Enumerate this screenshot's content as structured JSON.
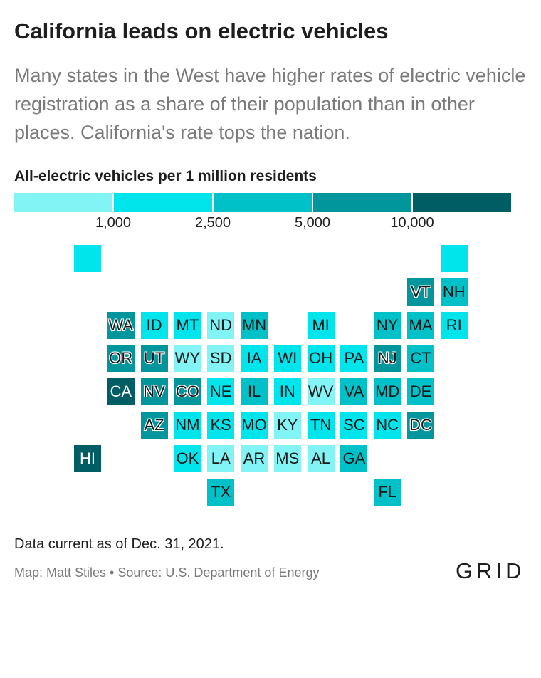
{
  "header": {
    "title": "California leads on electric vehicles",
    "subtitle": "Many states in the West have higher rates of electric vehicle registration as a share of their population than in other places. California's rate tops the nation."
  },
  "legend": {
    "title": "All-electric vehicles per 1 million residents",
    "ticks": [
      "1,000",
      "2,500",
      "5,000",
      "10,000"
    ],
    "colors": [
      "#82f4f6",
      "#00e4ec",
      "#00c1c8",
      "#00969c",
      "#005d63"
    ]
  },
  "map": {
    "tiles": [
      {
        "state": "",
        "col": 0,
        "row": 0,
        "bin": 1
      },
      {
        "state": "",
        "col": 11,
        "row": 0,
        "bin": 1
      },
      {
        "state": "VT",
        "col": 10,
        "row": 1,
        "bin": 3
      },
      {
        "state": "NH",
        "col": 11,
        "row": 1,
        "bin": 2
      },
      {
        "state": "WA",
        "col": 1,
        "row": 2,
        "bin": 3
      },
      {
        "state": "ID",
        "col": 2,
        "row": 2,
        "bin": 1
      },
      {
        "state": "MT",
        "col": 3,
        "row": 2,
        "bin": 1
      },
      {
        "state": "ND",
        "col": 4,
        "row": 2,
        "bin": 0
      },
      {
        "state": "MN",
        "col": 5,
        "row": 2,
        "bin": 2
      },
      {
        "state": "MI",
        "col": 7,
        "row": 2,
        "bin": 1
      },
      {
        "state": "NY",
        "col": 9,
        "row": 2,
        "bin": 2
      },
      {
        "state": "MA",
        "col": 10,
        "row": 2,
        "bin": 2
      },
      {
        "state": "RI",
        "col": 11,
        "row": 2,
        "bin": 1
      },
      {
        "state": "OR",
        "col": 1,
        "row": 3,
        "bin": 3
      },
      {
        "state": "UT",
        "col": 2,
        "row": 3,
        "bin": 3
      },
      {
        "state": "WY",
        "col": 3,
        "row": 3,
        "bin": 0
      },
      {
        "state": "SD",
        "col": 4,
        "row": 3,
        "bin": 0
      },
      {
        "state": "IA",
        "col": 5,
        "row": 3,
        "bin": 1
      },
      {
        "state": "WI",
        "col": 6,
        "row": 3,
        "bin": 1
      },
      {
        "state": "OH",
        "col": 7,
        "row": 3,
        "bin": 1
      },
      {
        "state": "PA",
        "col": 8,
        "row": 3,
        "bin": 1
      },
      {
        "state": "NJ",
        "col": 9,
        "row": 3,
        "bin": 3
      },
      {
        "state": "CT",
        "col": 10,
        "row": 3,
        "bin": 2
      },
      {
        "state": "CA",
        "col": 1,
        "row": 4,
        "bin": 4
      },
      {
        "state": "NV",
        "col": 2,
        "row": 4,
        "bin": 3
      },
      {
        "state": "CO",
        "col": 3,
        "row": 4,
        "bin": 3
      },
      {
        "state": "NE",
        "col": 4,
        "row": 4,
        "bin": 1
      },
      {
        "state": "IL",
        "col": 5,
        "row": 4,
        "bin": 2
      },
      {
        "state": "IN",
        "col": 6,
        "row": 4,
        "bin": 1
      },
      {
        "state": "WV",
        "col": 7,
        "row": 4,
        "bin": 0
      },
      {
        "state": "VA",
        "col": 8,
        "row": 4,
        "bin": 2
      },
      {
        "state": "MD",
        "col": 9,
        "row": 4,
        "bin": 2
      },
      {
        "state": "DE",
        "col": 10,
        "row": 4,
        "bin": 2
      },
      {
        "state": "AZ",
        "col": 2,
        "row": 5,
        "bin": 3
      },
      {
        "state": "NM",
        "col": 3,
        "row": 5,
        "bin": 1
      },
      {
        "state": "KS",
        "col": 4,
        "row": 5,
        "bin": 1
      },
      {
        "state": "MO",
        "col": 5,
        "row": 5,
        "bin": 1
      },
      {
        "state": "KY",
        "col": 6,
        "row": 5,
        "bin": 0
      },
      {
        "state": "TN",
        "col": 7,
        "row": 5,
        "bin": 1
      },
      {
        "state": "SC",
        "col": 8,
        "row": 5,
        "bin": 1
      },
      {
        "state": "NC",
        "col": 9,
        "row": 5,
        "bin": 1
      },
      {
        "state": "DC",
        "col": 10,
        "row": 5,
        "bin": 3
      },
      {
        "state": "HI",
        "col": 0,
        "row": 6,
        "bin": 4
      },
      {
        "state": "OK",
        "col": 3,
        "row": 6,
        "bin": 1
      },
      {
        "state": "LA",
        "col": 4,
        "row": 6,
        "bin": 0
      },
      {
        "state": "AR",
        "col": 5,
        "row": 6,
        "bin": 0
      },
      {
        "state": "MS",
        "col": 6,
        "row": 6,
        "bin": 0
      },
      {
        "state": "AL",
        "col": 7,
        "row": 6,
        "bin": 0
      },
      {
        "state": "GA",
        "col": 8,
        "row": 6,
        "bin": 2
      },
      {
        "state": "TX",
        "col": 4,
        "row": 7,
        "bin": 2
      },
      {
        "state": "FL",
        "col": 9,
        "row": 7,
        "bin": 2
      }
    ]
  },
  "footer": {
    "note": "Data current as of Dec. 31, 2021.",
    "credit": "Map: Matt Stiles • Source: U.S. Department of Energy",
    "logo": "GRID"
  }
}
